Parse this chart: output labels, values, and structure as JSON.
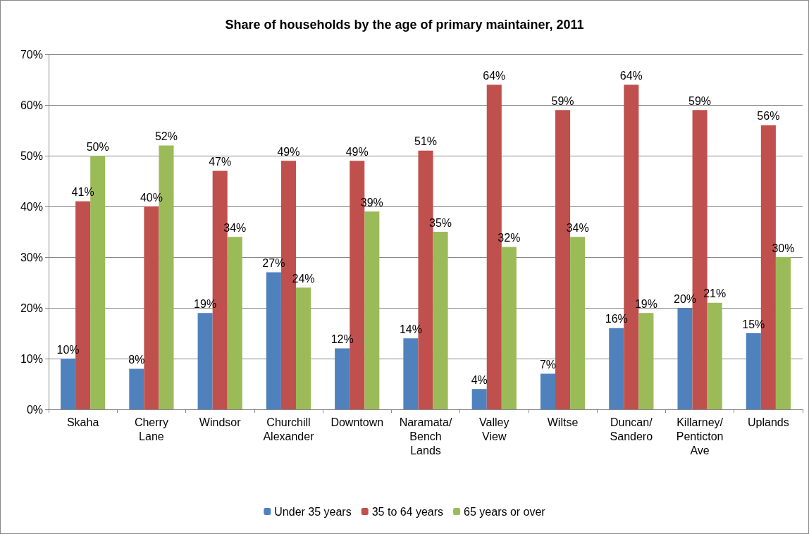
{
  "chart_data": {
    "type": "bar",
    "title": "Share of households by the age of primary maintainer, 2011",
    "categories": [
      "Skaha",
      "Cherry Lane",
      "Windsor",
      "Churchill Alexander",
      "Downtown",
      "Naramata/ Bench Lands",
      "Valley View",
      "Wiltse",
      "Duncan/ Sandero",
      "Killarney/ Penticton Ave",
      "Uplands"
    ],
    "series": [
      {
        "name": "Under 35 years",
        "color": "#4f81bd",
        "values": [
          10,
          8,
          19,
          27,
          12,
          14,
          4,
          7,
          16,
          20,
          15
        ],
        "value_labels": [
          "10%",
          "8%",
          "19%",
          "27%",
          "12%",
          "14%",
          "4%",
          "7%",
          "16%",
          "20%",
          "15%"
        ]
      },
      {
        "name": "35 to 64 years",
        "color": "#c0504d",
        "values": [
          41,
          40,
          47,
          49,
          49,
          51,
          64,
          59,
          64,
          59,
          56
        ],
        "value_labels": [
          "41%",
          "40%",
          "47%",
          "49%",
          "49%",
          "51%",
          "64%",
          "59%",
          "64%",
          "59%",
          "56%"
        ]
      },
      {
        "name": "65 years or over",
        "color": "#9bbb59",
        "values": [
          50,
          52,
          34,
          24,
          39,
          35,
          32,
          34,
          19,
          21,
          30
        ],
        "value_labels": [
          "50%",
          "52%",
          "34%",
          "24%",
          "39%",
          "35%",
          "32%",
          "34%",
          "19%",
          "21%",
          "30%"
        ]
      }
    ],
    "ylim": [
      0,
      70
    ],
    "yticks": [
      {
        "value": 0,
        "label": "0%"
      },
      {
        "value": 10,
        "label": "10%"
      },
      {
        "value": 20,
        "label": "20%"
      },
      {
        "value": 30,
        "label": "30%"
      },
      {
        "value": 40,
        "label": "40%"
      },
      {
        "value": 50,
        "label": "50%"
      },
      {
        "value": 60,
        "label": "60%"
      },
      {
        "value": 70,
        "label": "70%"
      }
    ],
    "grid": "y",
    "legend": "bottom"
  }
}
